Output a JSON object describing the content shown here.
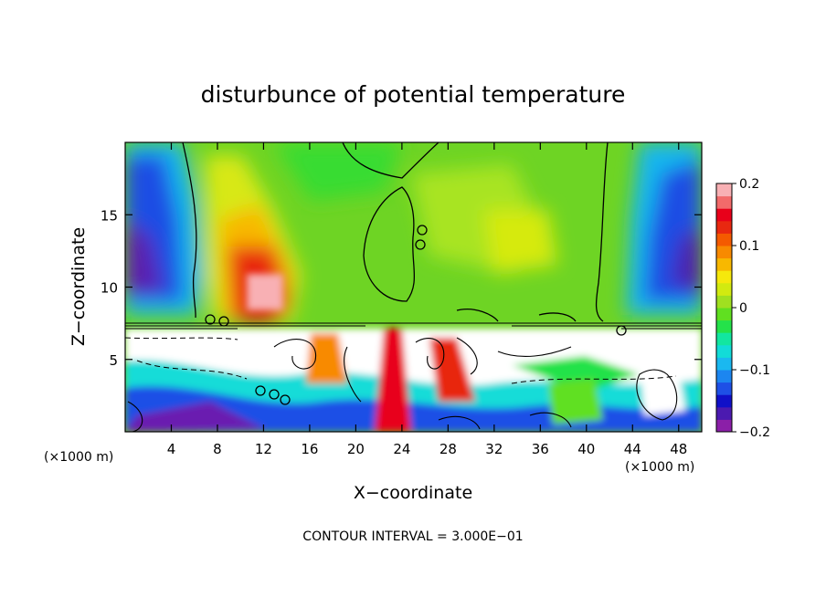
{
  "chart_data": {
    "type": "heatmap",
    "title": "disturbunce of potential temperature",
    "xlabel": "X−coordinate",
    "ylabel": "Z−coordinate",
    "x_unit": "(×1000 m)",
    "x_unit_right": "(×1000 m)",
    "xlim": [
      0,
      50
    ],
    "ylim": [
      0,
      20
    ],
    "xticks": [
      4,
      8,
      12,
      16,
      20,
      24,
      28,
      32,
      36,
      40,
      44,
      48
    ],
    "yticks": [
      5,
      10,
      15
    ],
    "colorbar": {
      "range": [
        -0.2,
        0.2
      ],
      "ticks": [
        {
          "value": 0.2,
          "label": "0.2"
        },
        {
          "value": 0.1,
          "label": "0.1"
        },
        {
          "value": 0,
          "label": "0"
        },
        {
          "value": -0.1,
          "label": "−0.1"
        },
        {
          "value": -0.2,
          "label": "−0.2"
        }
      ],
      "colors": [
        "#8b1fa8",
        "#4b1ab0",
        "#1010c8",
        "#1e50e6",
        "#1c86f0",
        "#1ab8f0",
        "#12dcd8",
        "#12e6a0",
        "#24e24a",
        "#60e020",
        "#a0e020",
        "#d2ea10",
        "#f6e80c",
        "#f8b800",
        "#f88a00",
        "#f45a00",
        "#e82810",
        "#e8001a",
        "#f26a6a",
        "#f8b0b4"
      ]
    },
    "footnote": "CONTOUR INTERVAL = 3.000E−01"
  }
}
